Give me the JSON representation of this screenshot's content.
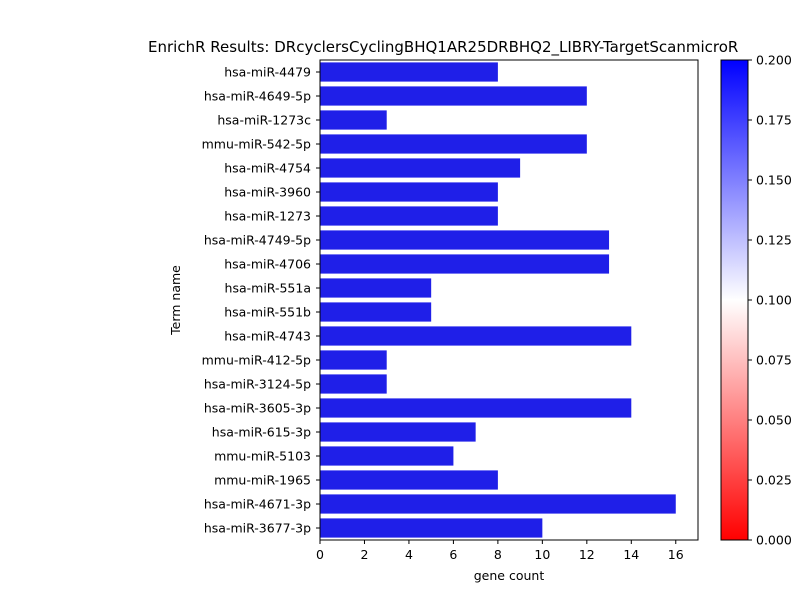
{
  "chart_data": {
    "type": "bar",
    "orientation": "horizontal",
    "title": "EnrichR Results: DRcyclersCyclingBHQ1AR25DRBHQ2_LIBRY-TargetScanmicroR",
    "xlabel": "gene count",
    "ylabel": "Term name",
    "xlim": [
      0,
      17
    ],
    "xticks": [
      0,
      2,
      4,
      6,
      8,
      10,
      12,
      14,
      16
    ],
    "grid": false,
    "categories": [
      "hsa-miR-4479",
      "hsa-miR-4649-5p",
      "hsa-miR-1273c",
      "mmu-miR-542-5p",
      "hsa-miR-4754",
      "hsa-miR-3960",
      "hsa-miR-1273",
      "hsa-miR-4749-5p",
      "hsa-miR-4706",
      "hsa-miR-551a",
      "hsa-miR-551b",
      "hsa-miR-4743",
      "mmu-miR-412-5p",
      "hsa-miR-3124-5p",
      "hsa-miR-3605-3p",
      "hsa-miR-615-3p",
      "mmu-miR-5103",
      "mmu-miR-1965",
      "hsa-miR-4671-3p",
      "hsa-miR-3677-3p"
    ],
    "values": [
      8,
      12,
      3,
      12,
      9,
      8,
      8,
      13,
      13,
      5,
      5,
      14,
      3,
      3,
      14,
      7,
      6,
      8,
      16,
      10
    ],
    "bar_color": "#1f1fe8",
    "colorbar": {
      "range": [
        0,
        0.2
      ],
      "ticks": [
        "0.000",
        "0.025",
        "0.050",
        "0.075",
        "0.100",
        "0.125",
        "0.150",
        "0.175",
        "0.200"
      ],
      "colors": [
        "#ff0000",
        "#ffffff",
        "#0000ff"
      ]
    }
  }
}
